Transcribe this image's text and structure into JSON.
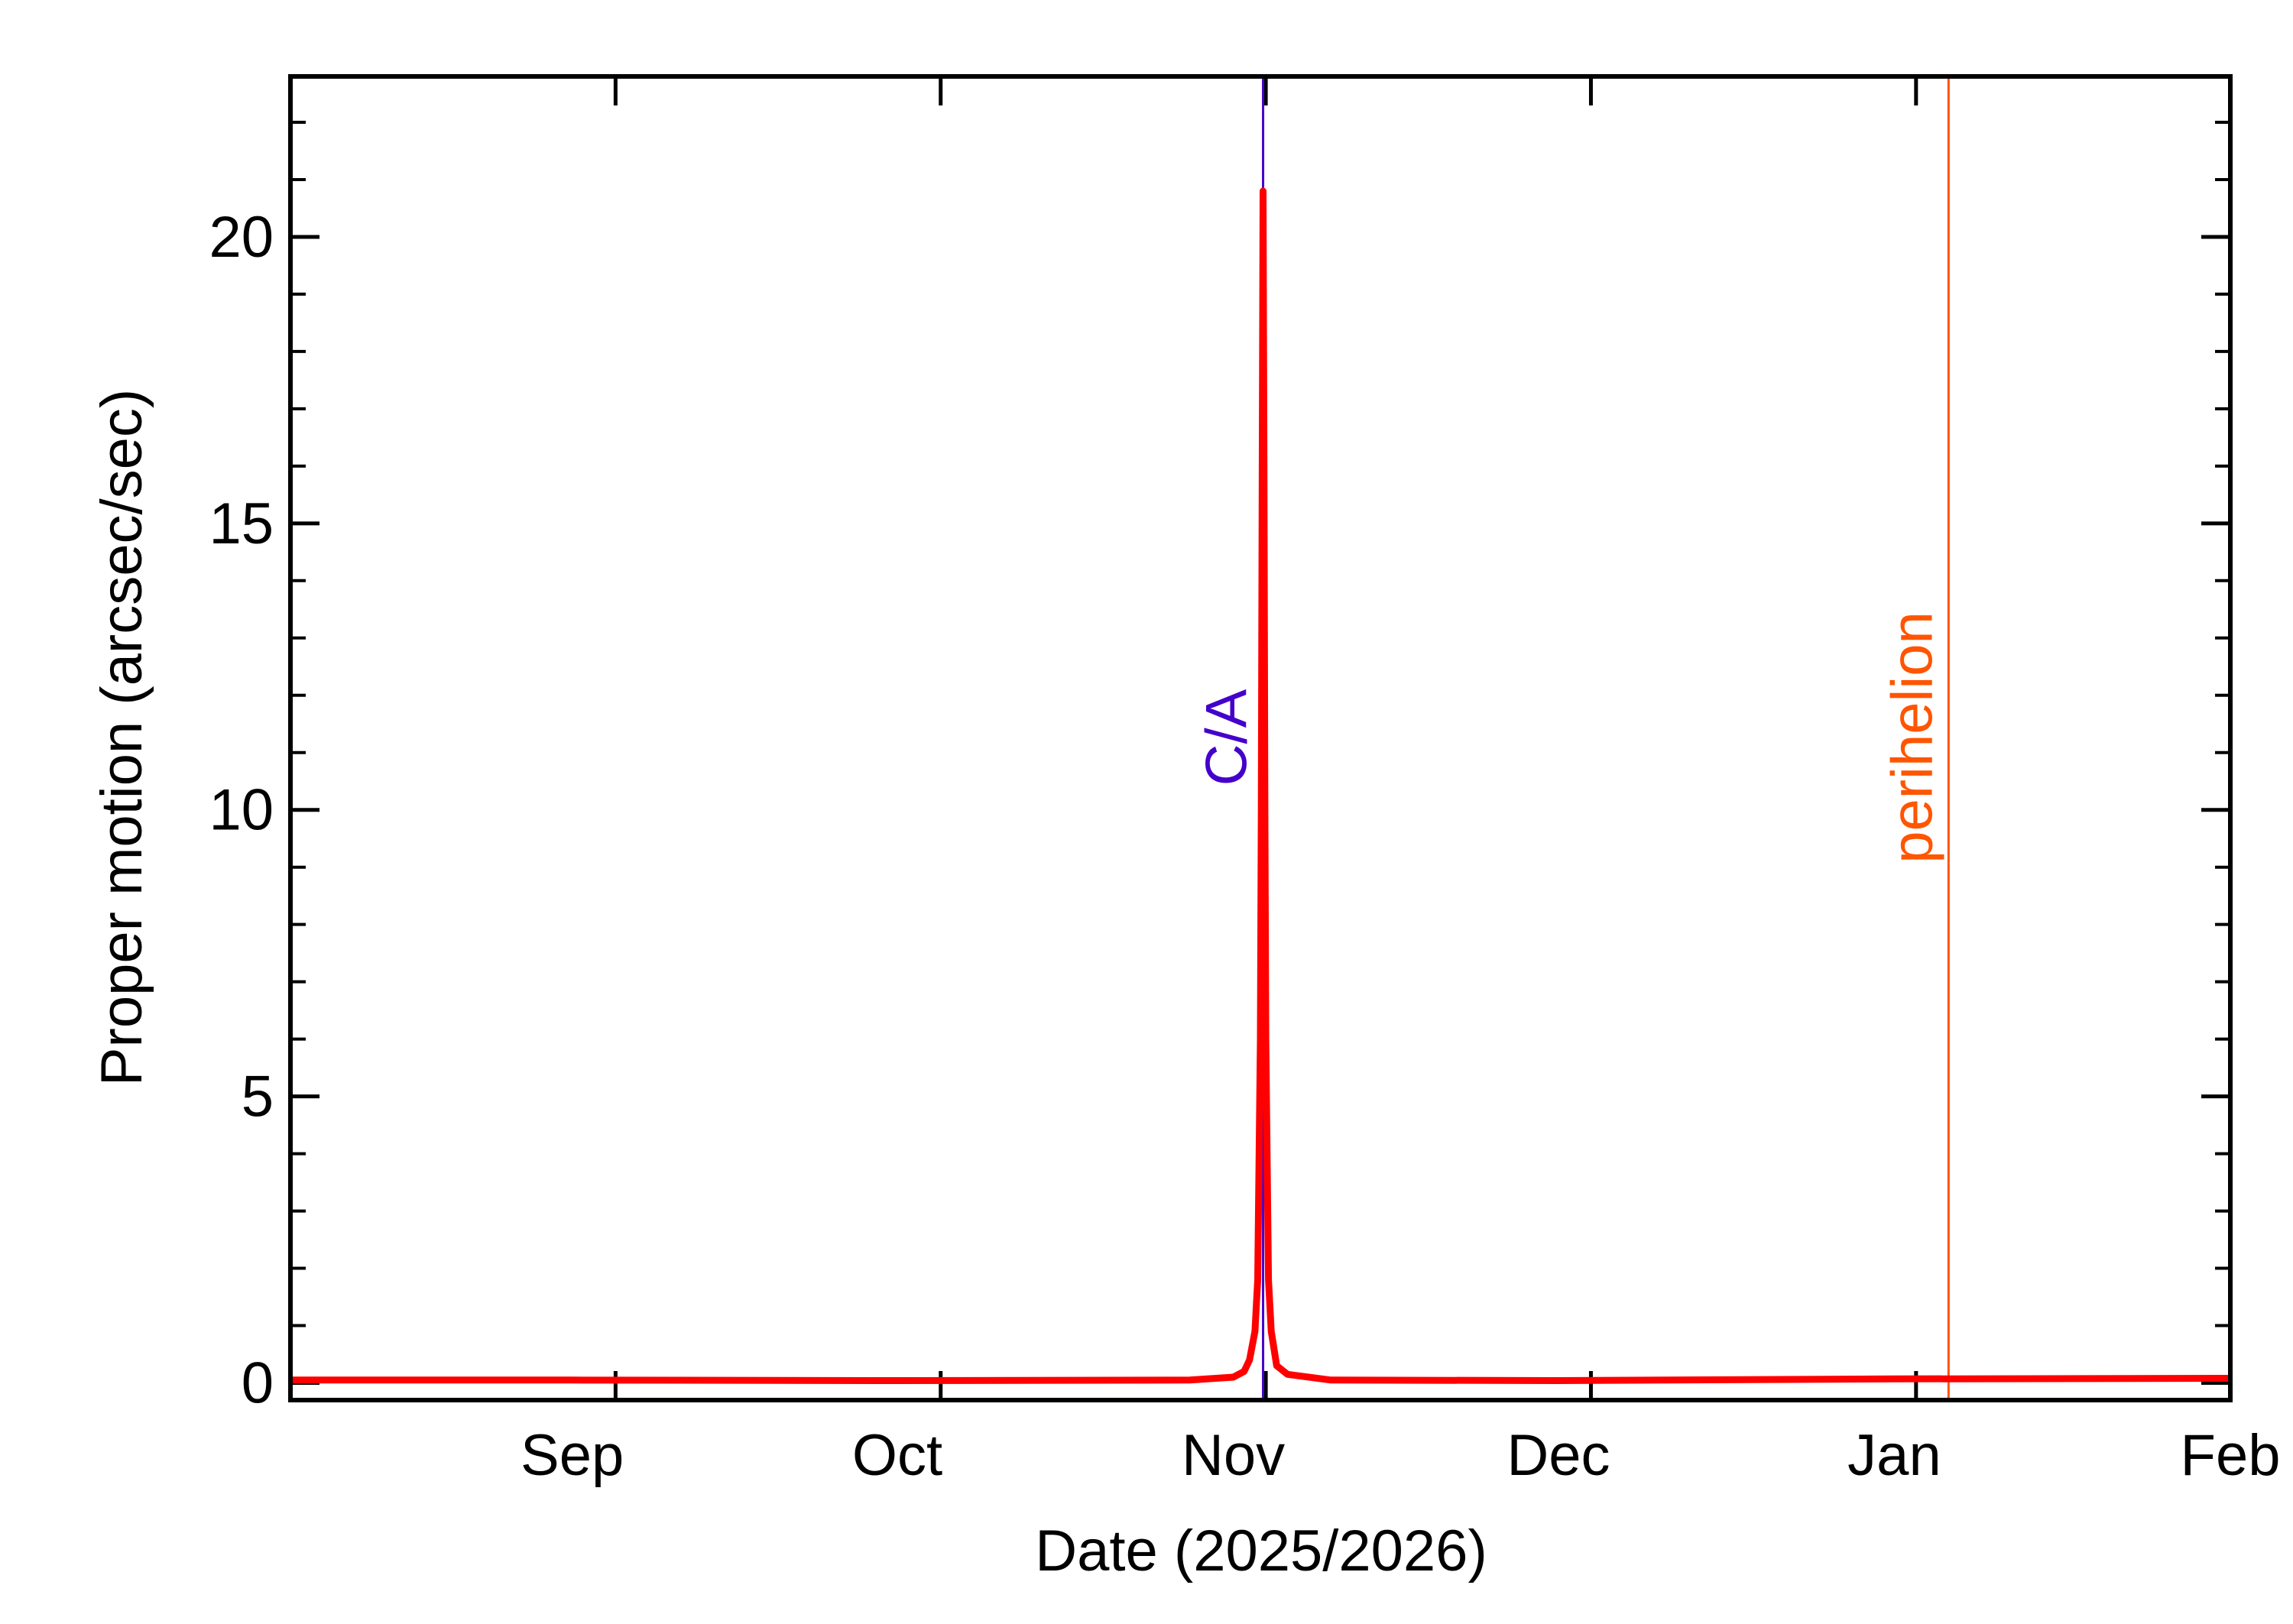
{
  "chart_data": {
    "type": "line",
    "title": "",
    "xlabel": "Date (2025/2026)",
    "ylabel": "Proper motion (arcsec/sec)",
    "x_tick_labels": [
      {
        "date": "2025-09-01",
        "label": "Sep"
      },
      {
        "date": "2025-10-01",
        "label": "Oct"
      },
      {
        "date": "2025-11-01",
        "label": "Nov"
      },
      {
        "date": "2025-12-01",
        "label": "Dec"
      },
      {
        "date": "2026-01-01",
        "label": "Jan"
      },
      {
        "date": "2026-02-01",
        "label": "Feb"
      }
    ],
    "xlim": [
      "2025-08-06",
      "2026-02-01"
    ],
    "ylim": [
      -0.3,
      22.8
    ],
    "y_ticks": [
      0,
      5,
      10,
      15,
      20
    ],
    "y_minor_step": 1,
    "x_minor_step_days": 30,
    "grid": false,
    "legend": "none",
    "series": [
      {
        "color": "#ff0000",
        "x": [
          "2025-08-06",
          "2025-09-01",
          "2025-10-01",
          "2025-10-28",
          "2025-11-01",
          "2025-11-02",
          "2025-11-02T12:00",
          "2025-11-03",
          "2025-11-03T06:00",
          "2025-11-03T12:00",
          "2025-11-03T14:00",
          "2025-11-03T16:00",
          "2025-11-03T18:00",
          "2025-11-03T20:00",
          "2025-11-03T22:00",
          "2025-11-04",
          "2025-11-04T06:00",
          "2025-11-04T12:00",
          "2025-11-05",
          "2025-11-06",
          "2025-11-10",
          "2025-12-01",
          "2026-01-01",
          "2026-02-01"
        ],
        "values": [
          0.05,
          0.05,
          0.04,
          0.05,
          0.1,
          0.2,
          0.4,
          0.9,
          1.8,
          6.0,
          10.0,
          16.0,
          20.8,
          16.0,
          10.0,
          6.0,
          1.8,
          0.9,
          0.3,
          0.15,
          0.05,
          0.04,
          0.07,
          0.08
        ]
      }
    ],
    "annotations": [
      {
        "label": "C/A",
        "date": "2025-11-03T18:00",
        "color": "#4400cc"
      },
      {
        "label": "perihelion",
        "date": "2026-01-06",
        "color": "#ff5500"
      }
    ]
  }
}
